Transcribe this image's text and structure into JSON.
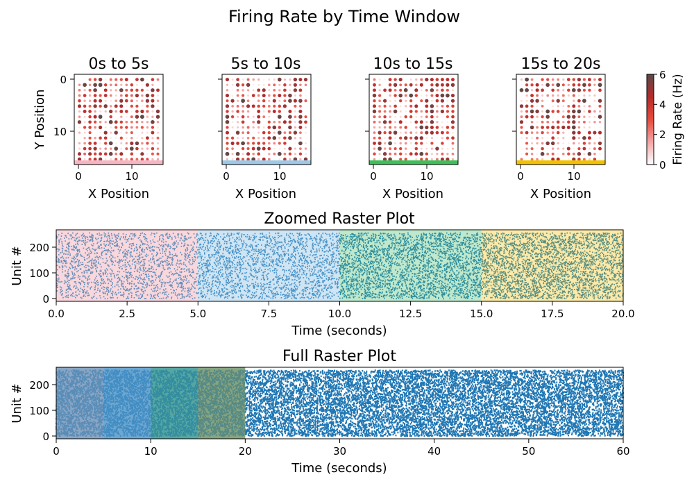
{
  "figure": {
    "title": "Firing Rate by Time Window"
  },
  "chart_data": [
    {
      "type": "scatter",
      "panel": "heatmap-window-1",
      "title": "0s to 5s",
      "xlabel": "X Position",
      "ylabel": "Y Position",
      "xticks": [
        "0",
        "10"
      ],
      "yticks": [
        "0",
        "10"
      ],
      "xlim": [
        -1,
        16
      ],
      "ylim": [
        16,
        -1
      ],
      "grid": {
        "cols": 16,
        "rows": 16,
        "spacing": 1
      },
      "window_color": "#f4b6c2",
      "value_range": [
        0,
        6
      ]
    },
    {
      "type": "scatter",
      "panel": "heatmap-window-2",
      "title": "5s to 10s",
      "xlabel": "X Position",
      "xticks": [
        "0",
        "10"
      ],
      "xlim": [
        -1,
        16
      ],
      "ylim": [
        16,
        -1
      ],
      "window_color": "#9ec9e6",
      "value_range": [
        0,
        6
      ]
    },
    {
      "type": "scatter",
      "panel": "heatmap-window-3",
      "title": "10s to 15s",
      "xlabel": "X Position",
      "xticks": [
        "0",
        "10"
      ],
      "xlim": [
        -1,
        16
      ],
      "ylim": [
        16,
        -1
      ],
      "window_color": "#3fbf5a",
      "value_range": [
        0,
        6
      ]
    },
    {
      "type": "scatter",
      "panel": "heatmap-window-4",
      "title": "15s to 20s",
      "xlabel": "X Position",
      "xticks": [
        "0",
        "10"
      ],
      "xlim": [
        -1,
        16
      ],
      "ylim": [
        16,
        -1
      ],
      "window_color": "#f2c200",
      "value_range": [
        0,
        6
      ]
    },
    {
      "type": "scatter",
      "panel": "zoomed-raster",
      "title": "Zoomed Raster Plot",
      "xlabel": "Time (seconds)",
      "ylabel": "Unit #",
      "xlim": [
        0,
        20
      ],
      "ylim": [
        -10,
        268
      ],
      "xticks": [
        "0.0",
        "2.5",
        "5.0",
        "7.5",
        "10.0",
        "12.5",
        "15.0",
        "17.5",
        "20.0"
      ],
      "yticks": [
        "0",
        "100",
        "200"
      ],
      "units": 256,
      "windows": [
        {
          "start": 0,
          "end": 5,
          "shade": "#f8d7dd",
          "spike_color": "#6a90b8",
          "density": 0.65
        },
        {
          "start": 5,
          "end": 10,
          "shade": "#cfe5f4",
          "spike_color": "#4a94c7",
          "density": 0.75
        },
        {
          "start": 10,
          "end": 15,
          "shade": "#bfe8cc",
          "spike_color": "#2e8e9c",
          "density": 1.0
        },
        {
          "start": 15,
          "end": 20,
          "shade": "#fde9a8",
          "spike_color": "#5a8f80",
          "density": 1.1
        }
      ]
    },
    {
      "type": "scatter",
      "panel": "full-raster",
      "title": "Full Raster Plot",
      "xlabel": "Time (seconds)",
      "ylabel": "Unit #",
      "xlim": [
        0,
        60
      ],
      "ylim": [
        -10,
        268
      ],
      "xticks": [
        "0",
        "10",
        "20",
        "30",
        "40",
        "50",
        "60"
      ],
      "yticks": [
        "0",
        "100",
        "200"
      ],
      "units": 256,
      "spike_color": "#1f77b4",
      "windows": [
        {
          "start": 0,
          "end": 5,
          "shade": "#f4b6c2",
          "tint": "#6a93b8"
        },
        {
          "start": 5,
          "end": 10,
          "shade": "#9ec9e6",
          "tint": "#4d94c6"
        },
        {
          "start": 10,
          "end": 15,
          "shade": "#3fbf5a",
          "tint": "#3a9499"
        },
        {
          "start": 15,
          "end": 20,
          "shade": "#f2c200",
          "tint": "#668f76"
        }
      ]
    }
  ],
  "colorbar": {
    "label": "Firing Rate (Hz)",
    "ticks": [
      "0",
      "2",
      "4",
      "6"
    ],
    "range": [
      0,
      6
    ],
    "colors": [
      "#ffffff",
      "#f4a5a5",
      "#e84a3c",
      "#b52b2b",
      "#5c4949"
    ]
  }
}
